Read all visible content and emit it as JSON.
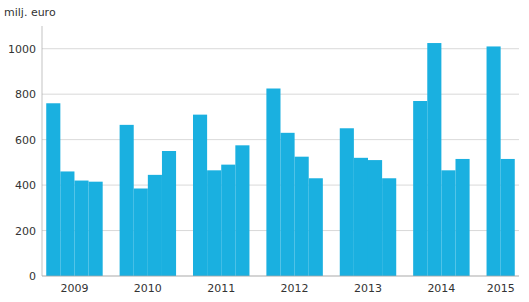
{
  "chart_data": {
    "type": "bar",
    "y_label": "milj. euro",
    "categories": [
      "2009",
      "2010",
      "2011",
      "2012",
      "2013",
      "2014",
      "2015"
    ],
    "series": [
      {
        "values": [
          760,
          665,
          710,
          825,
          650,
          770,
          1010
        ]
      },
      {
        "values": [
          460,
          385,
          465,
          630,
          520,
          1025,
          515
        ]
      },
      {
        "values": [
          420,
          445,
          490,
          525,
          510,
          465,
          null
        ]
      },
      {
        "values": [
          415,
          550,
          575,
          430,
          430,
          515,
          null
        ]
      }
    ],
    "color": "#1ab0e0",
    "ylim": [
      0,
      1100
    ],
    "yticks": [
      0,
      200,
      400,
      600,
      800,
      1000
    ],
    "grid": true
  }
}
